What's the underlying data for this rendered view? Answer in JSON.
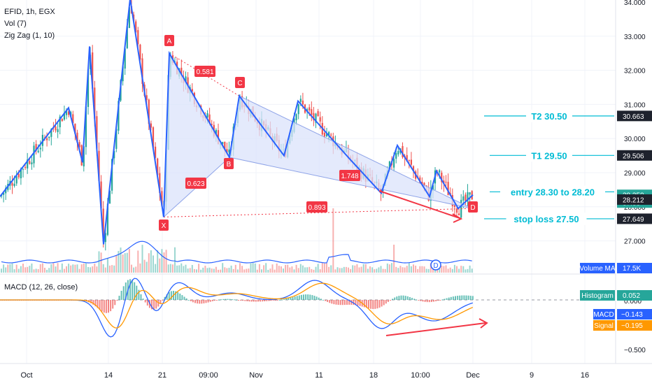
{
  "header": {
    "symbol_line": "EFID, 1h, EGX",
    "indicators": [
      "Vol (7)",
      "Zig Zag (1, 10)"
    ]
  },
  "colors": {
    "up": "#26a69a",
    "down": "#ef5350",
    "zigzag": "#2962ff",
    "harmonic_fill": "#dbe3fb",
    "harmonic_label": "#f23645",
    "annotation": "#00bcd4",
    "macd": "#2962ff",
    "signal": "#ff9800",
    "price_tag": "#26a69a"
  },
  "price_axis": {
    "ticks": [
      "34.000",
      "33.000",
      "32.000",
      "31.000",
      "30.000",
      "29.000",
      "28.000",
      "27.000"
    ],
    "tags": [
      {
        "label": "30.663",
        "value": 30.663,
        "color": "#1e222d"
      },
      {
        "label": "29.506",
        "value": 29.506,
        "color": "#1e222d"
      },
      {
        "label": "28.350",
        "value": 28.35,
        "color": "#26a69a",
        "sub": "37:33"
      },
      {
        "label": "28.212",
        "value": 28.212,
        "color": "#1e222d"
      },
      {
        "label": "27.649",
        "value": 27.649,
        "color": "#1e222d"
      }
    ]
  },
  "annotations": [
    {
      "text": "T2 30.50",
      "value": 30.663
    },
    {
      "text": "T1 29.50",
      "value": 29.506
    },
    {
      "text": "entry 28.30 to 28.20",
      "value": 28.212
    },
    {
      "text": "stop loss 27.50",
      "value": 27.649
    }
  ],
  "harmonic": {
    "points": [
      {
        "label": "X",
        "value": 27.7
      },
      {
        "label": "A",
        "value": 32.5
      },
      {
        "label": "B",
        "value": 29.45
      },
      {
        "label": "C",
        "value": 31.25
      },
      {
        "label": "D",
        "value": 27.95
      }
    ],
    "ratios": [
      {
        "text": "0.581"
      },
      {
        "text": "0.623"
      },
      {
        "text": "1.748"
      },
      {
        "text": "0.893"
      }
    ]
  },
  "volume": {
    "ma_label": "Volume MA",
    "ma_value": "17.5K",
    "dividend_marker": "D"
  },
  "macd": {
    "title": "MACD (12, 26, close)",
    "histogram_label": "Histogram",
    "histogram_value": "0.052",
    "macd_label": "MACD",
    "macd_value": "−0.143",
    "signal_label": "Signal",
    "signal_value": "−0.195",
    "ticks": [
      "0.000",
      "−0.500"
    ]
  },
  "time_axis": {
    "labels": [
      "Oct",
      "14",
      "21",
      "09:00",
      "Nov",
      "11",
      "18",
      "10:00",
      "Dec",
      "9",
      "16"
    ]
  },
  "chart_data": {
    "type": "line",
    "title": "EFID, 1h, EGX",
    "ylim": [
      26.5,
      34.1
    ],
    "zigzag": [
      {
        "x": "Sep 30",
        "y": 28.3
      },
      {
        "x": "Oct 6",
        "y": 30.9
      },
      {
        "x": "Oct 8",
        "y": 29.3
      },
      {
        "x": "Oct 10",
        "y": 32.7
      },
      {
        "x": "Oct 13",
        "y": 26.9
      },
      {
        "x": "Oct 17",
        "y": 34.1
      },
      {
        "x": "Oct 21",
        "y": 27.7
      },
      {
        "x": "Oct 22",
        "y": 32.5
      },
      {
        "x": "Oct 28",
        "y": 29.45
      },
      {
        "x": "Oct 30",
        "y": 31.25
      },
      {
        "x": "Nov 4",
        "y": 29.5
      },
      {
        "x": "Nov 6",
        "y": 31.1
      },
      {
        "x": "Nov 14",
        "y": 29.4
      },
      {
        "x": "Nov 18",
        "y": 28.4
      },
      {
        "x": "Nov 20",
        "y": 29.8
      },
      {
        "x": "Nov 25",
        "y": 28.3
      },
      {
        "x": "Nov 26",
        "y": 29.05
      },
      {
        "x": "Nov 28",
        "y": 27.95
      },
      {
        "x": "Dec 1",
        "y": 28.35
      }
    ],
    "last_price": 28.35
  }
}
